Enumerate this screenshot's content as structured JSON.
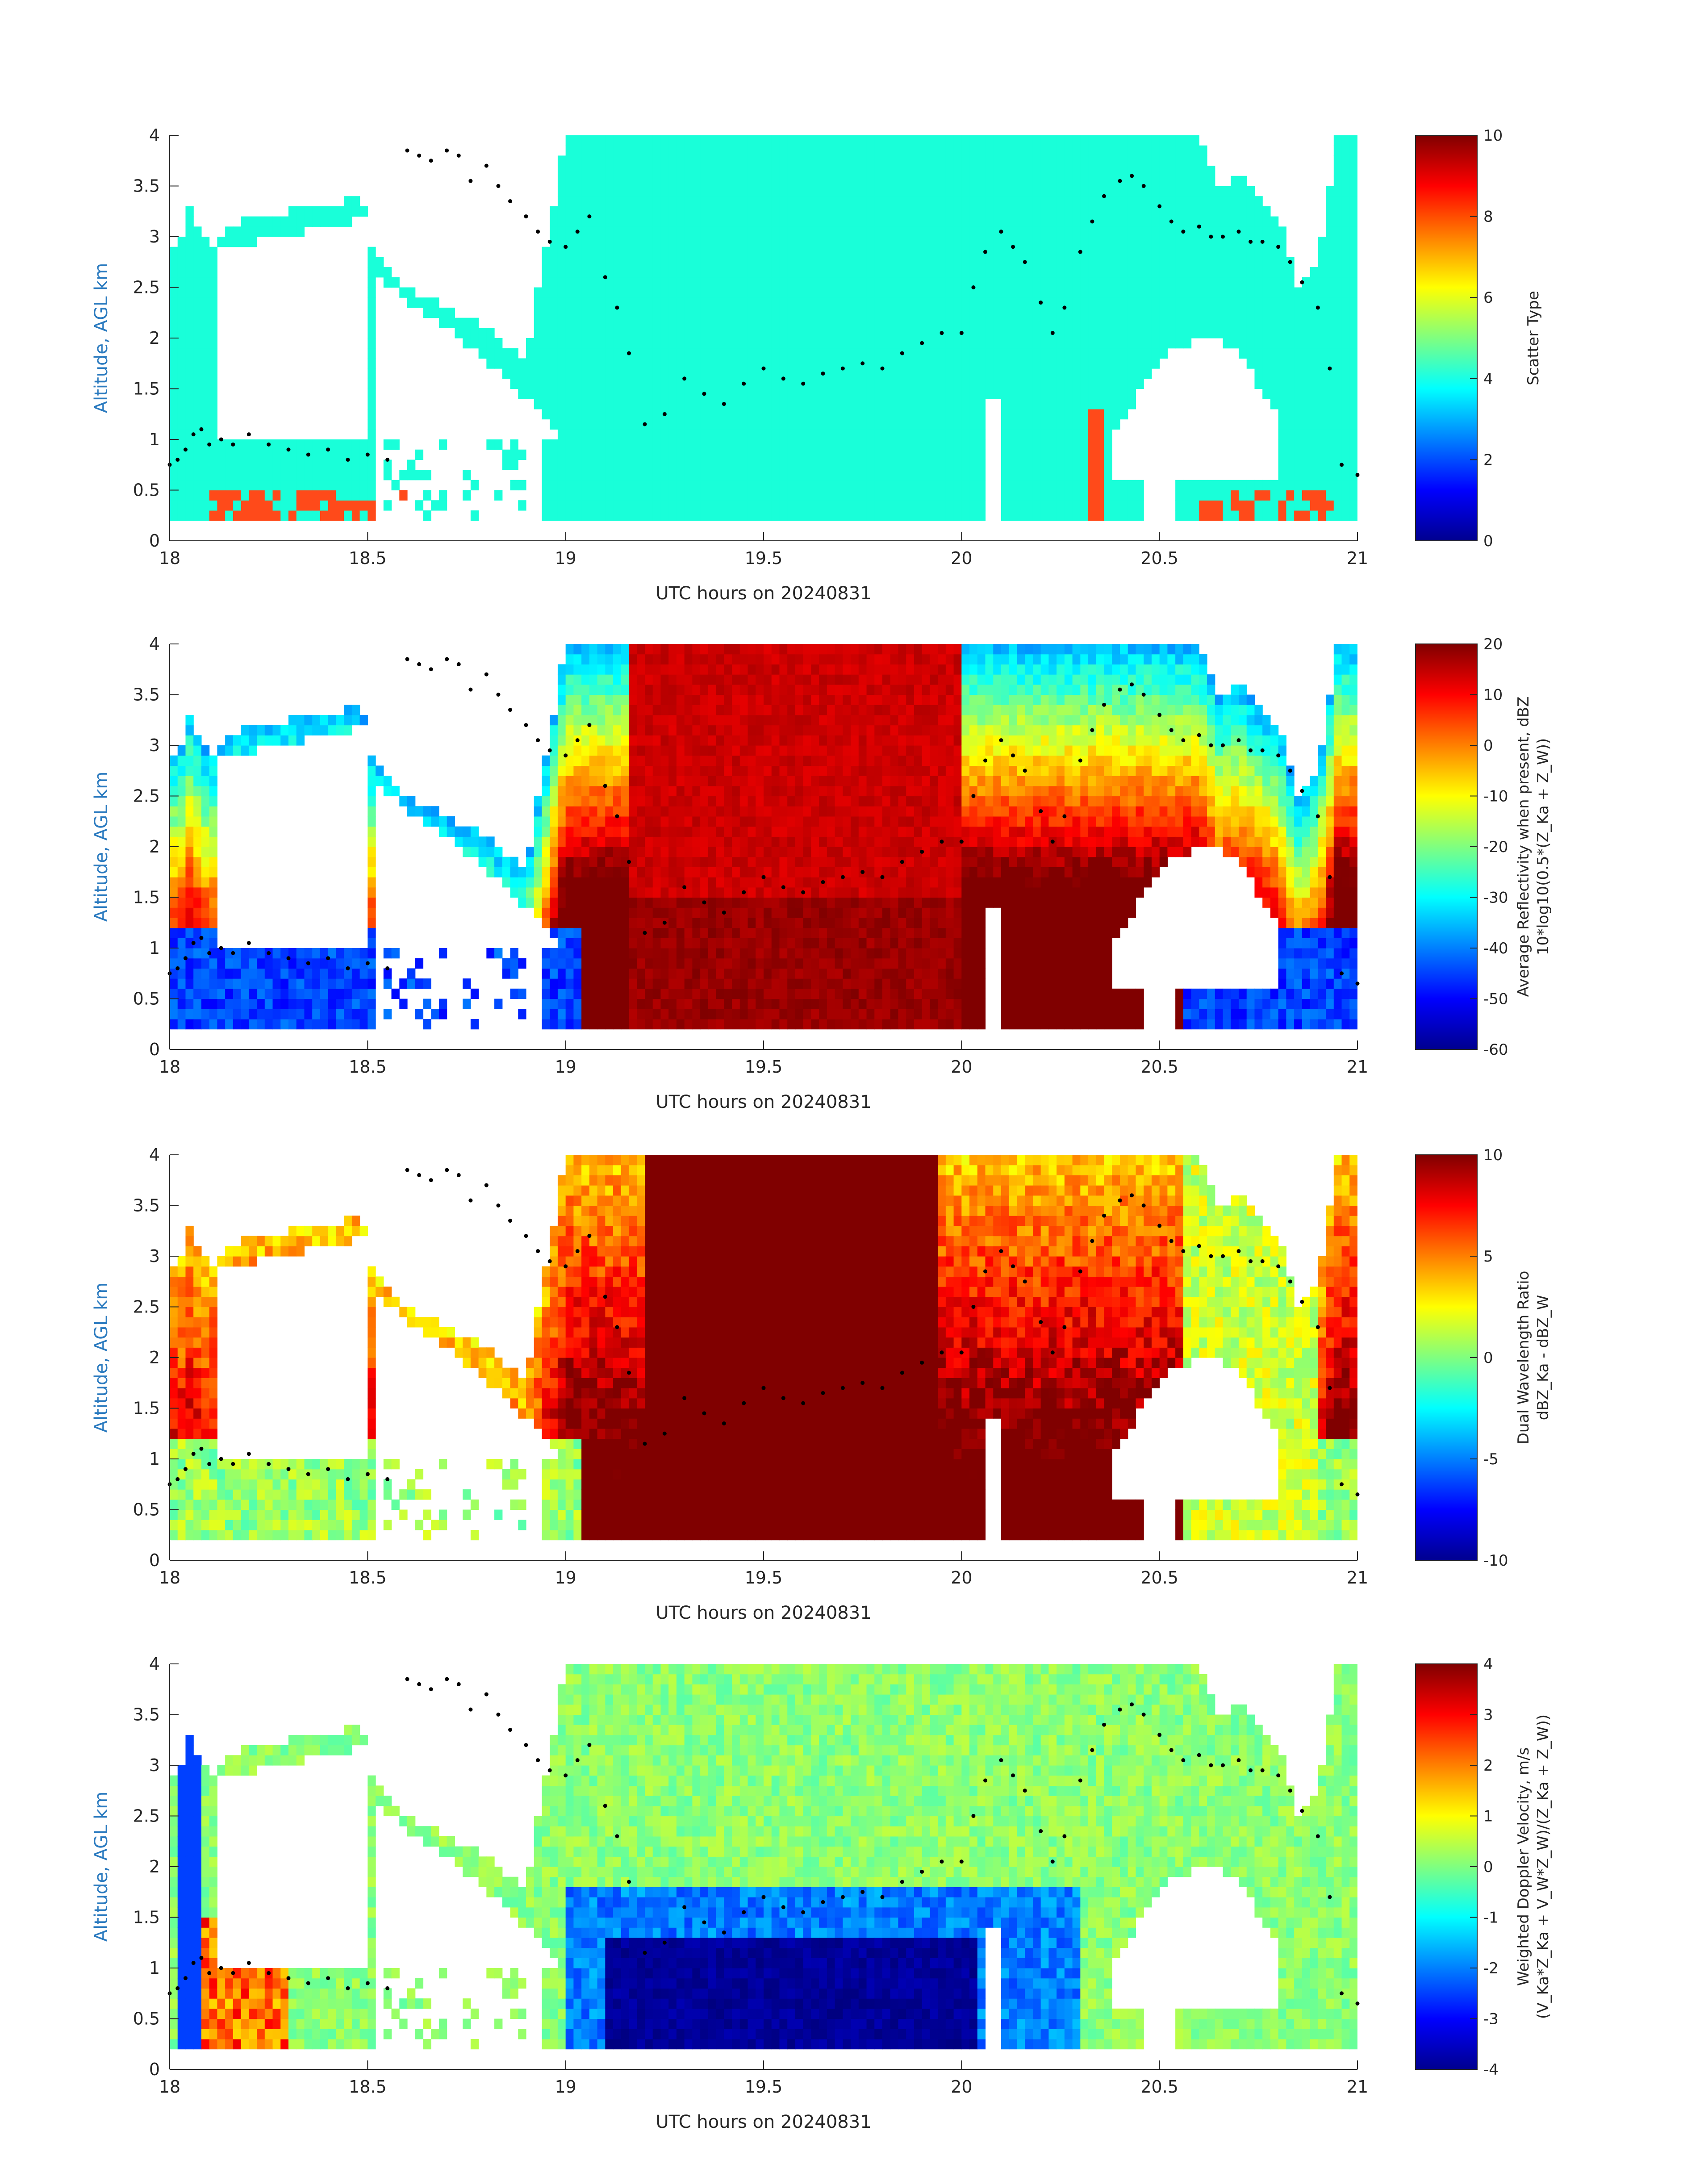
{
  "figure": {
    "xlabel": "UTC hours on 20240831",
    "ylabel": "Altitude, AGL km",
    "x_ticks": [
      "18",
      "18.5",
      "19",
      "19.5",
      "20",
      "20.5",
      "21"
    ],
    "y_ticks": [
      "0",
      "0.5",
      "1",
      "1.5",
      "2",
      "2.5",
      "3",
      "3.5",
      "4"
    ]
  },
  "chart_data": [
    {
      "type": "heatmap",
      "xlabel": "UTC hours on 20240831",
      "ylabel": "Altitude, AGL km",
      "xlim": [
        18,
        21
      ],
      "ylim": [
        0,
        4
      ],
      "colorbar": {
        "label_lines": [
          "Scatter Type"
        ],
        "ticks": [
          "0",
          "2",
          "4",
          "6",
          "8",
          "10"
        ],
        "range": [
          0,
          10
        ],
        "colormap": "jet"
      },
      "description_values": {
        "background_class": 4,
        "secondary_class": 8.7
      }
    },
    {
      "type": "heatmap",
      "xlabel": "UTC hours on 20240831",
      "ylabel": "Altitude, AGL km",
      "xlim": [
        18,
        21
      ],
      "ylim": [
        0,
        4
      ],
      "colorbar": {
        "label_lines": [
          "Average Reflectivity when present, dBZ",
          "10*log10(0.5*(Z_Ka + Z_W))"
        ],
        "ticks": [
          "-60",
          "-50",
          "-40",
          "-30",
          "-20",
          "-10",
          "0",
          "10",
          "20"
        ],
        "range": [
          -60,
          20
        ],
        "colormap": "jet"
      }
    },
    {
      "type": "heatmap",
      "xlabel": "UTC hours on 20240831",
      "ylabel": "Altitude, AGL km",
      "xlim": [
        18,
        21
      ],
      "ylim": [
        0,
        4
      ],
      "colorbar": {
        "label_lines": [
          "Dual Wavelength Ratio",
          "dBZ_Ka - dBZ_W"
        ],
        "ticks": [
          "-10",
          "-5",
          "0",
          "5",
          "10"
        ],
        "range": [
          -10,
          10
        ],
        "colormap": "jet"
      }
    },
    {
      "type": "heatmap",
      "xlabel": "UTC hours on 20240831",
      "ylabel": "Altitude, AGL km",
      "xlim": [
        18,
        21
      ],
      "ylim": [
        0,
        4
      ],
      "colorbar": {
        "label_lines": [
          "Weighted Doppler Velocity, m/s",
          "(V_Ka*Z_Ka + V_W*Z_W)/(Z_Ka + Z_W))"
        ],
        "ticks": [
          "-4",
          "-3",
          "-2",
          "-1",
          "0",
          "1",
          "2",
          "3",
          "4"
        ],
        "range": [
          -4,
          4
        ],
        "colormap": "jet"
      }
    }
  ],
  "cloud_top_dots": {
    "x": [
      18.0,
      18.02,
      18.04,
      18.06,
      18.08,
      18.1,
      18.13,
      18.16,
      18.2,
      18.25,
      18.3,
      18.35,
      18.4,
      18.45,
      18.5,
      18.55,
      18.6,
      18.63,
      18.66,
      18.7,
      18.73,
      18.76,
      18.8,
      18.83,
      18.86,
      18.9,
      18.93,
      18.96,
      19.0,
      19.03,
      19.06,
      19.1,
      19.13,
      19.16,
      19.2,
      19.25,
      19.3,
      19.35,
      19.4,
      19.45,
      19.5,
      19.55,
      19.6,
      19.65,
      19.7,
      19.75,
      19.8,
      19.85,
      19.9,
      19.95,
      20.0,
      20.03,
      20.06,
      20.1,
      20.13,
      20.16,
      20.2,
      20.23,
      20.26,
      20.3,
      20.33,
      20.36,
      20.4,
      20.43,
      20.46,
      20.5,
      20.53,
      20.56,
      20.6,
      20.63,
      20.66,
      20.7,
      20.73,
      20.76,
      20.8,
      20.83,
      20.86,
      20.9,
      20.93,
      20.96,
      21.0
    ],
    "y": [
      0.75,
      0.8,
      0.9,
      1.05,
      1.1,
      0.95,
      1.0,
      0.95,
      1.05,
      0.95,
      0.9,
      0.85,
      0.9,
      0.8,
      0.85,
      0.8,
      3.85,
      3.8,
      3.75,
      3.85,
      3.8,
      3.55,
      3.7,
      3.5,
      3.35,
      3.2,
      3.05,
      2.95,
      2.9,
      3.05,
      3.2,
      2.6,
      2.3,
      1.85,
      1.15,
      1.25,
      1.6,
      1.45,
      1.35,
      1.55,
      1.7,
      1.6,
      1.55,
      1.65,
      1.7,
      1.75,
      1.7,
      1.85,
      1.95,
      2.05,
      2.05,
      2.5,
      2.85,
      3.05,
      2.9,
      2.75,
      2.35,
      2.05,
      2.3,
      2.85,
      3.15,
      3.4,
      3.55,
      3.6,
      3.5,
      3.3,
      3.15,
      3.05,
      3.1,
      3.0,
      3.0,
      3.05,
      2.95,
      2.95,
      2.9,
      2.75,
      2.55,
      2.3,
      1.7,
      0.75,
      0.65
    ]
  },
  "colors": {
    "scatter_background": "#19ffd9",
    "scatter_secondary": "#ff4a1a",
    "axis_y_color": "#2a7abf",
    "tick_color": "#262626"
  }
}
